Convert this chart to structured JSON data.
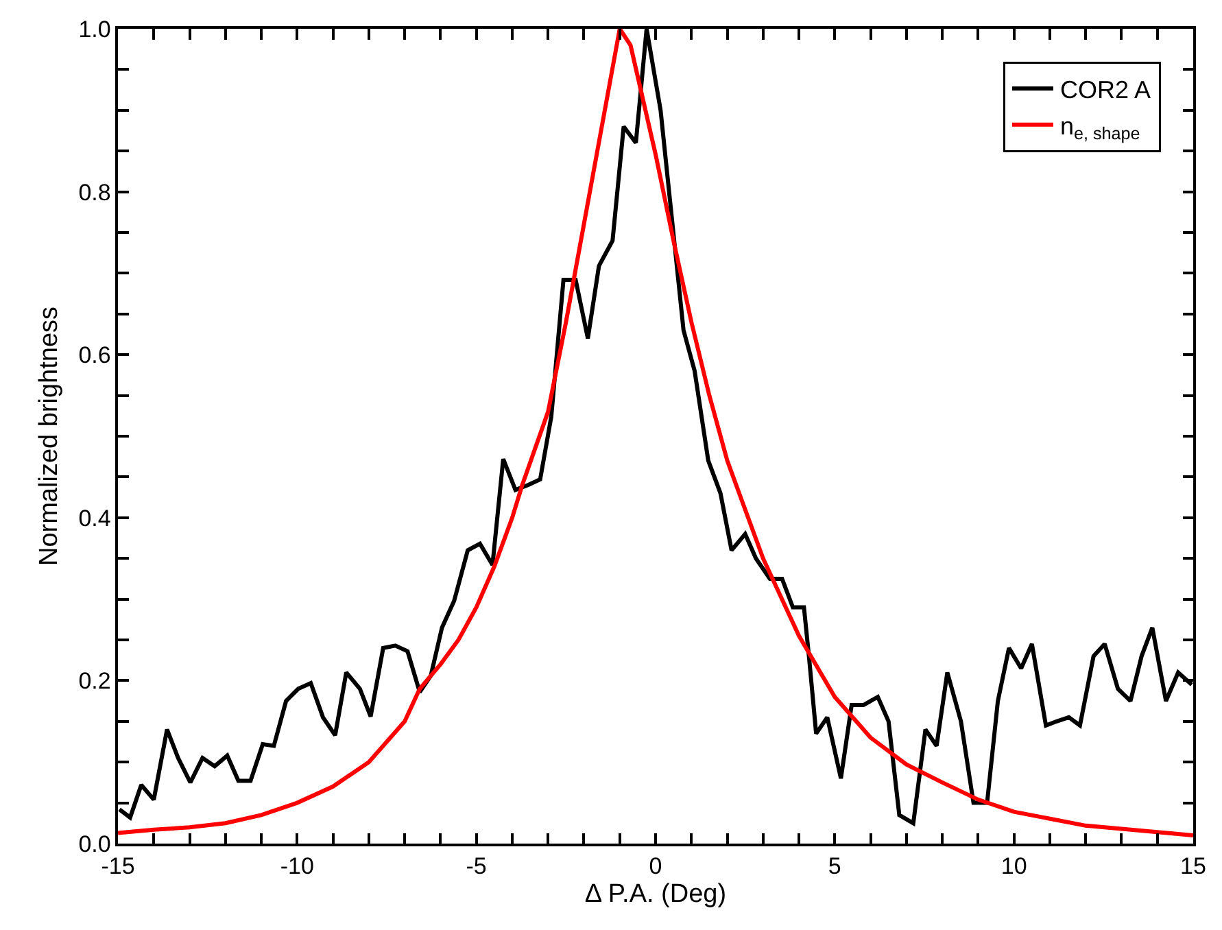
{
  "chart_data": {
    "type": "line",
    "xlabel": "Δ P.A. (Deg)",
    "ylabel": "Normalized brightness",
    "xlim": [
      -15,
      15
    ],
    "ylim": [
      0,
      1
    ],
    "xticks": [
      -15,
      {
        "value": -14,
        "label": null
      },
      {
        "value": -13,
        "label": null
      },
      {
        "value": -12,
        "label": null
      },
      {
        "value": -11,
        "label": null
      },
      -10,
      {
        "value": -9,
        "label": null
      },
      {
        "value": -8,
        "label": null
      },
      {
        "value": -7,
        "label": null
      },
      {
        "value": -6,
        "label": null
      },
      -5,
      {
        "value": -4,
        "label": null
      },
      {
        "value": -3,
        "label": null
      },
      {
        "value": -2,
        "label": null
      },
      {
        "value": -1,
        "label": null
      },
      0,
      {
        "value": 1,
        "label": null
      },
      {
        "value": 2,
        "label": null
      },
      {
        "value": 3,
        "label": null
      },
      {
        "value": 4,
        "label": null
      },
      5,
      {
        "value": 6,
        "label": null
      },
      {
        "value": 7,
        "label": null
      },
      {
        "value": 8,
        "label": null
      },
      {
        "value": 9,
        "label": null
      },
      10,
      {
        "value": 11,
        "label": null
      },
      {
        "value": 12,
        "label": null
      },
      {
        "value": 13,
        "label": null
      },
      {
        "value": 14,
        "label": null
      },
      15
    ],
    "yticks": [
      {
        "value": 0,
        "label": "0.0"
      },
      {
        "value": 0.05,
        "label": null
      },
      {
        "value": 0.1,
        "label": null
      },
      {
        "value": 0.15,
        "label": null
      },
      0.2,
      {
        "value": 0.25,
        "label": null
      },
      {
        "value": 0.3,
        "label": null
      },
      {
        "value": 0.35,
        "label": null
      },
      0.4,
      {
        "value": 0.45,
        "label": null
      },
      {
        "value": 0.5,
        "label": null
      },
      {
        "value": 0.55,
        "label": null
      },
      0.6,
      {
        "value": 0.65,
        "label": null
      },
      {
        "value": 0.7,
        "label": null
      },
      {
        "value": 0.75,
        "label": null
      },
      0.8,
      {
        "value": 0.85,
        "label": null
      },
      {
        "value": 0.9,
        "label": null
      },
      {
        "value": 0.95,
        "label": null
      },
      {
        "value": 1,
        "label": "1.0"
      }
    ],
    "legend": "top right",
    "marker": "none",
    "line_style": "solid",
    "series": [
      {
        "name": "COR2 A",
        "color": "#000000",
        "x": [
          -14.96,
          -14.66,
          -14.35,
          -14.0,
          -13.63,
          -13.32,
          -12.98,
          -12.64,
          -12.3,
          -11.95,
          -11.64,
          -11.3,
          -10.96,
          -10.65,
          -10.31,
          -9.97,
          -9.62,
          -9.28,
          -8.94,
          -8.63,
          -8.25,
          -7.95,
          -7.6,
          -7.26,
          -6.92,
          -6.58,
          -6.27,
          -5.96,
          -5.62,
          -5.24,
          -4.9,
          -4.55,
          -4.25,
          -3.91,
          -3.56,
          -3.22,
          -2.91,
          -2.57,
          -2.23,
          -1.89,
          -1.58,
          -1.2,
          -0.89,
          -0.55,
          -0.25,
          0.14,
          0.78,
          1.09,
          1.47,
          1.81,
          2.12,
          2.5,
          2.8,
          3.19,
          3.53,
          3.83,
          4.14,
          4.29,
          4.48,
          4.79,
          5.17,
          5.47,
          5.8,
          6.2,
          6.5,
          6.8,
          7.19,
          7.53,
          7.84,
          8.14,
          8.52,
          8.87,
          9.25,
          9.55,
          9.86,
          10.2,
          10.5,
          10.89,
          11.19,
          11.53,
          11.84,
          12.22,
          12.53,
          12.9,
          13.25,
          13.56,
          13.86,
          14.24,
          14.58,
          14.96
        ],
        "values": [
          0.042,
          0.032,
          0.072,
          0.054,
          0.14,
          0.105,
          0.075,
          0.105,
          0.095,
          0.108,
          0.077,
          0.077,
          0.122,
          0.12,
          0.175,
          0.19,
          0.197,
          0.155,
          0.133,
          0.21,
          0.19,
          0.156,
          0.24,
          0.243,
          0.236,
          0.186,
          0.206,
          0.265,
          0.298,
          0.36,
          0.368,
          0.342,
          0.472,
          0.434,
          0.44,
          0.447,
          0.524,
          0.692,
          0.692,
          0.62,
          0.709,
          0.74,
          0.88,
          0.86,
          1.0,
          0.9,
          0.63,
          0.58,
          0.47,
          0.43,
          0.36,
          0.38,
          0.35,
          0.325,
          0.325,
          0.29,
          0.29,
          0.225,
          0.135,
          0.155,
          0.08,
          0.17,
          0.17,
          0.18,
          0.15,
          0.035,
          0.025,
          0.14,
          0.12,
          0.21,
          0.15,
          0.05,
          0.05,
          0.175,
          0.24,
          0.215,
          0.245,
          0.145,
          0.15,
          0.155,
          0.145,
          0.23,
          0.245,
          0.19,
          0.175,
          0.23,
          0.265,
          0.175,
          0.21,
          0.195
        ]
      },
      {
        "name": "n$_{e, shape}$",
        "color": "#ff0000",
        "x": [
          -15,
          -14,
          -13,
          -12,
          -11,
          -10,
          -9,
          -8,
          -7,
          -6.58,
          -6,
          -5.5,
          -5,
          -4.5,
          -4,
          -3.72,
          -3,
          -2.5,
          -2,
          -1.5,
          -1,
          -0.7,
          0,
          0.5,
          1,
          1.5,
          2,
          2.5,
          3,
          4,
          5,
          6,
          7,
          8,
          9,
          10,
          12,
          15
        ],
        "values": [
          0.013,
          0.017,
          0.02,
          0.025,
          0.035,
          0.05,
          0.07,
          0.1,
          0.15,
          0.19,
          0.22,
          0.25,
          0.29,
          0.34,
          0.4,
          0.44,
          0.53,
          0.64,
          0.76,
          0.88,
          1.0,
          0.98,
          0.846,
          0.74,
          0.64,
          0.55,
          0.47,
          0.41,
          0.35,
          0.255,
          0.18,
          0.13,
          0.097,
          0.075,
          0.054,
          0.039,
          0.022,
          0.01
        ]
      }
    ]
  }
}
